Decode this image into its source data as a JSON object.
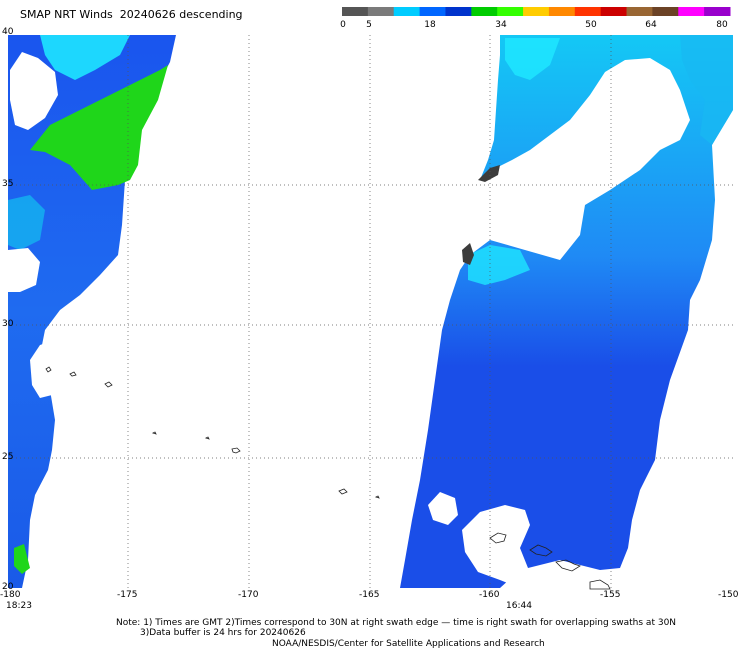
{
  "title": "SMAP NRT Winds  20240626 descending",
  "colorbar": {
    "labels": [
      "0",
      "5",
      "18",
      "34",
      "50",
      "64",
      "80"
    ],
    "colors": [
      "#555555",
      "#7a7a7a",
      "#00ccff",
      "#0066ff",
      "#0033cc",
      "#00cc00",
      "#33ff00",
      "#ffcc00",
      "#ff8800",
      "#ff3300",
      "#cc0000",
      "#996633",
      "#6b4226",
      "#ff00ff",
      "#9900cc"
    ]
  },
  "axes": {
    "lon_ticks": [
      "-180",
      "-175",
      "-170",
      "-165",
      "-160",
      "-155",
      "-150"
    ],
    "lat_ticks": [
      "40",
      "35",
      "30",
      "25",
      "20"
    ]
  },
  "swath_times": {
    "left": "18:23",
    "right": "16:44"
  },
  "notes": {
    "line1": "Note: 1) Times are GMT 2)Times correspond to 30N at right swath edge — time is right swath for overlapping swaths at 30N",
    "line2": "3)Data buffer is 24 hrs for 20240626",
    "credit": "NOAA/NESDIS/Center for Satellite Applications and Research"
  },
  "map_colors": {
    "blue_dark": "#0a2fd9",
    "blue_mid": "#1f6bf0",
    "blue_light": "#14c8f5",
    "cyan": "#1ee6ff",
    "green": "#1fd61a",
    "rain_flag": "#3c3c3c",
    "coast": "#222222",
    "grid": "#555555"
  }
}
